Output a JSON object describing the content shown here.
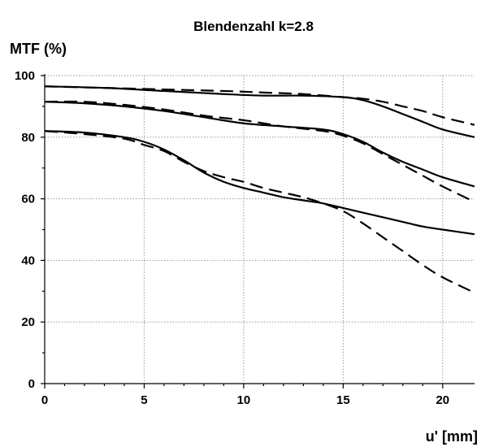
{
  "chart_data": {
    "type": "line",
    "title": "Blendenzahl k=2.8",
    "ylabel": "MTF (%)",
    "xlabel": "u' [mm]",
    "xlim": [
      0,
      21.6
    ],
    "ylim": [
      0,
      100
    ],
    "x_ticks": [
      "0",
      "5",
      "10",
      "15",
      "20"
    ],
    "y_ticks": [
      "0",
      "20",
      "40",
      "60",
      "80",
      "100"
    ],
    "grid": true,
    "series": [
      {
        "style": "solid",
        "x": [
          0,
          3,
          6,
          9,
          11,
          13,
          15,
          16,
          17,
          18,
          19,
          20,
          21.6
        ],
        "y": [
          96.5,
          96,
          95,
          94,
          93.5,
          93.5,
          93,
          92,
          90,
          87.5,
          85,
          82.5,
          80
        ]
      },
      {
        "style": "dashed",
        "x": [
          0,
          3,
          6,
          9,
          11,
          13,
          15,
          16,
          17,
          18,
          19,
          20,
          21.6
        ],
        "y": [
          96.5,
          96,
          95.5,
          95,
          94.5,
          94,
          93,
          92.5,
          91.5,
          90,
          88.5,
          86.5,
          84
        ]
      },
      {
        "style": "solid",
        "x": [
          0,
          2,
          4,
          6,
          8,
          10,
          12,
          14,
          15,
          16,
          17,
          18,
          19,
          20,
          21.6
        ],
        "y": [
          91.5,
          91,
          90,
          88.5,
          86.5,
          84.5,
          83.5,
          82.5,
          81,
          78.5,
          75,
          72,
          69.5,
          67,
          64
        ]
      },
      {
        "style": "dashed",
        "x": [
          0,
          2,
          4,
          6,
          8,
          10,
          12,
          14,
          15,
          16,
          17,
          18,
          19,
          20,
          21.6
        ],
        "y": [
          91.5,
          91.5,
          90.5,
          89,
          87,
          85.5,
          83.5,
          82,
          80.5,
          78,
          74.5,
          71,
          67.5,
          64,
          59
        ]
      },
      {
        "style": "solid",
        "x": [
          0,
          2,
          4,
          5,
          6,
          7,
          8,
          9,
          10,
          11,
          12,
          13,
          14,
          15,
          16,
          17,
          18,
          19,
          20,
          21.6
        ],
        "y": [
          82,
          81.5,
          80,
          78.5,
          76,
          72.5,
          68.5,
          65.5,
          63.5,
          62,
          60.5,
          59.5,
          58.5,
          57,
          55.5,
          54,
          52.5,
          51,
          50,
          48.5
        ]
      },
      {
        "style": "dashed",
        "x": [
          0,
          2,
          4,
          5,
          6,
          7,
          8,
          9,
          10,
          11,
          12,
          13,
          14,
          15,
          16,
          17,
          18,
          19,
          20,
          21.6
        ],
        "y": [
          82,
          81,
          79.5,
          77.5,
          75.5,
          72,
          69,
          67,
          65.5,
          63.5,
          62,
          60.5,
          58.5,
          56,
          52,
          47.5,
          43,
          38.5,
          34.5,
          29.5
        ]
      }
    ]
  }
}
